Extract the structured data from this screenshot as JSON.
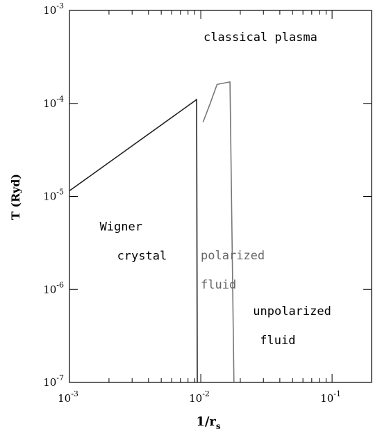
{
  "chart_data": {
    "type": "line",
    "title": "",
    "xlabel": "1/r",
    "xlabel_sub": "s",
    "ylabel": "T (Ryd)",
    "xscale": "log",
    "yscale": "log",
    "xlim": [
      0.001,
      0.2
    ],
    "ylim": [
      1e-07,
      0.001
    ],
    "grid": false,
    "x_ticks": [
      {
        "value": 0.001,
        "base": "10",
        "exp": "-3"
      },
      {
        "value": 0.01,
        "base": "10",
        "exp": "-2"
      },
      {
        "value": 0.1,
        "base": "10",
        "exp": "-1"
      }
    ],
    "y_ticks": [
      {
        "value": 1e-07,
        "base": "10",
        "exp": "-7"
      },
      {
        "value": 1e-06,
        "base": "10",
        "exp": "-6"
      },
      {
        "value": 1e-05,
        "base": "10",
        "exp": "-5"
      },
      {
        "value": 0.0001,
        "base": "10",
        "exp": "-4"
      },
      {
        "value": 0.001,
        "base": "10",
        "exp": "-3"
      }
    ],
    "series": [
      {
        "color": "#222222",
        "x": [
          0.001,
          0.0093,
          0.0093,
          0.0094
        ],
        "y": [
          1.15e-05,
          0.00011,
          0.00011,
          1e-07
        ]
      },
      {
        "color": "#777777",
        "x": [
          0.0104,
          0.0118,
          0.0133,
          0.0166,
          0.0167,
          0.0179
        ],
        "y": [
          6.3e-05,
          0.0001,
          0.00016,
          0.00017,
          0.00017,
          1e-07
        ]
      }
    ],
    "annotations": [
      {
        "lines": [
          "classical plasma"
        ],
        "x": 0.0105,
        "y": 0.00047,
        "color": "#000000"
      },
      {
        "lines": [
          "Wigner",
          "crystal"
        ],
        "x": 0.0017,
        "y": 4.3e-06,
        "color": "#000000"
      },
      {
        "lines": [
          "polarized",
          "fluid"
        ],
        "x": 0.01,
        "y": 2.1e-06,
        "color": "#666666"
      },
      {
        "lines": [
          "unpolarized",
          "fluid"
        ],
        "x": 0.025,
        "y": 5.3e-07,
        "color": "#000000"
      }
    ]
  }
}
